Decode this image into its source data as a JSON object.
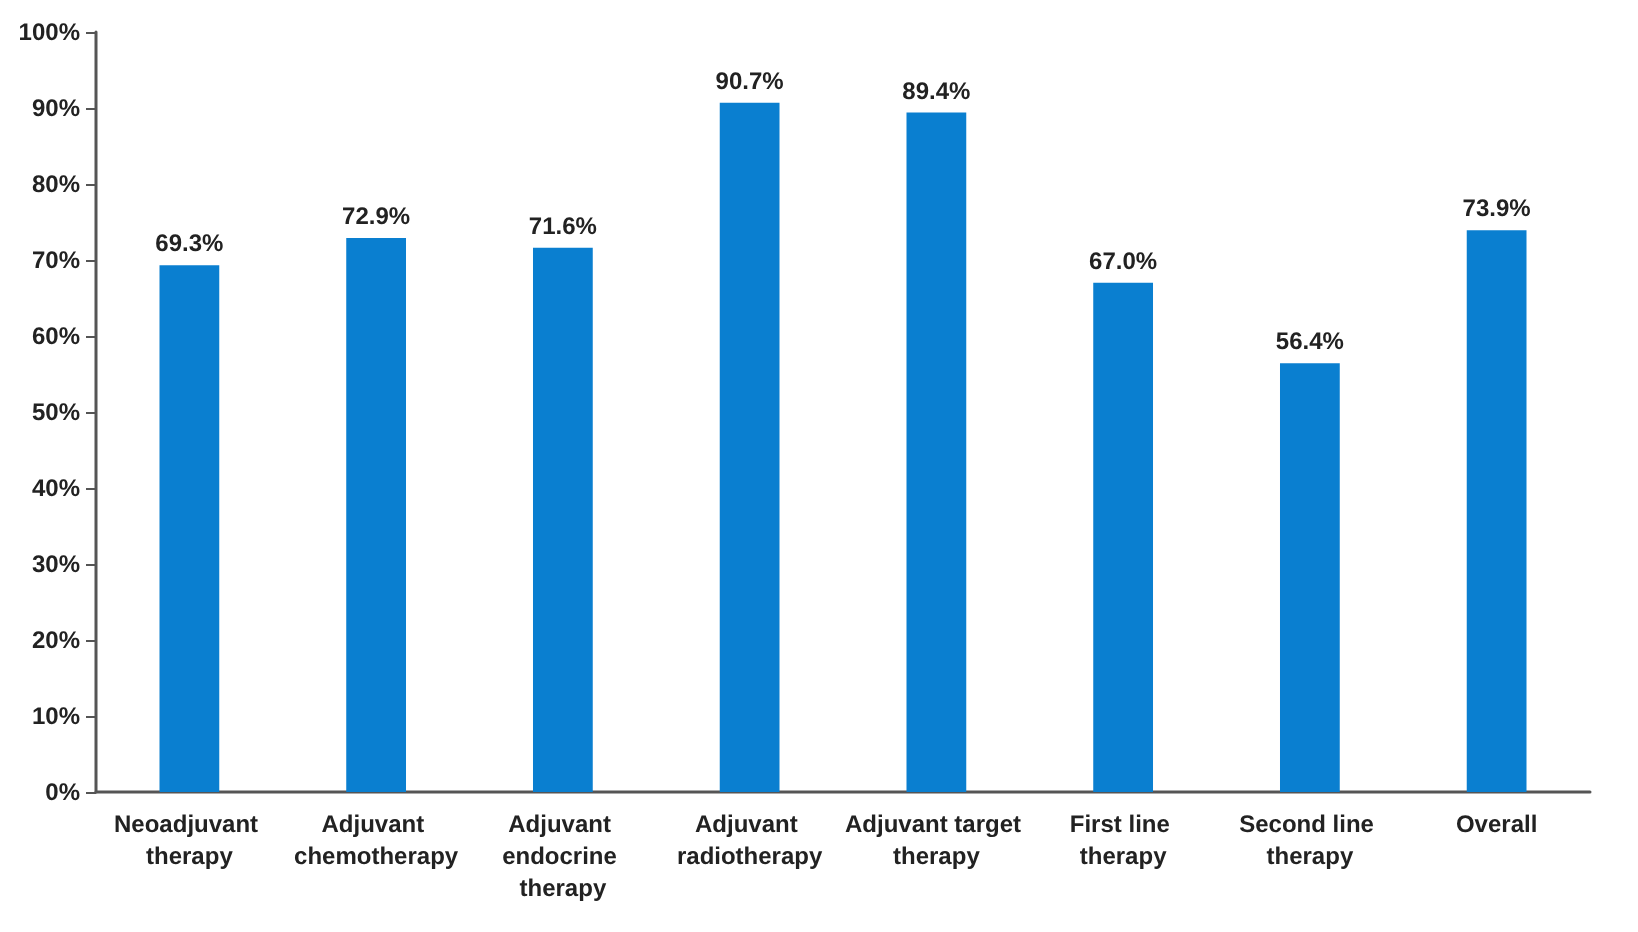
{
  "chart_data": {
    "type": "bar",
    "categories": [
      "Neoadjuvant therapy",
      "Adjuvant chemotherapy",
      "Adjuvant endocrine therapy",
      "Adjuvant radiotherapy",
      "Adjuvant target therapy",
      "First line therapy",
      "Second line therapy",
      "Overall"
    ],
    "values": [
      69.3,
      72.9,
      71.6,
      90.7,
      89.4,
      67.0,
      56.4,
      73.9
    ],
    "value_labels": [
      "69.3%",
      "72.9%",
      "71.6%",
      "90.7%",
      "89.4%",
      "67.0%",
      "56.4%",
      "73.9%"
    ],
    "color": "#0a7fd0",
    "ylim": [
      0,
      100
    ],
    "yticks": [
      {
        "value": 0,
        "label": "0%"
      },
      {
        "value": 10,
        "label": "10%"
      },
      {
        "value": 20,
        "label": "20%"
      },
      {
        "value": 30,
        "label": "30%"
      },
      {
        "value": 40,
        "label": "40%"
      },
      {
        "value": 50,
        "label": "50%"
      },
      {
        "value": 60,
        "label": "60%"
      },
      {
        "value": 70,
        "label": "70%"
      },
      {
        "value": 80,
        "label": "80%"
      },
      {
        "value": 90,
        "label": "90%"
      },
      {
        "value": 100,
        "label": "100%"
      }
    ],
    "grid": false
  }
}
